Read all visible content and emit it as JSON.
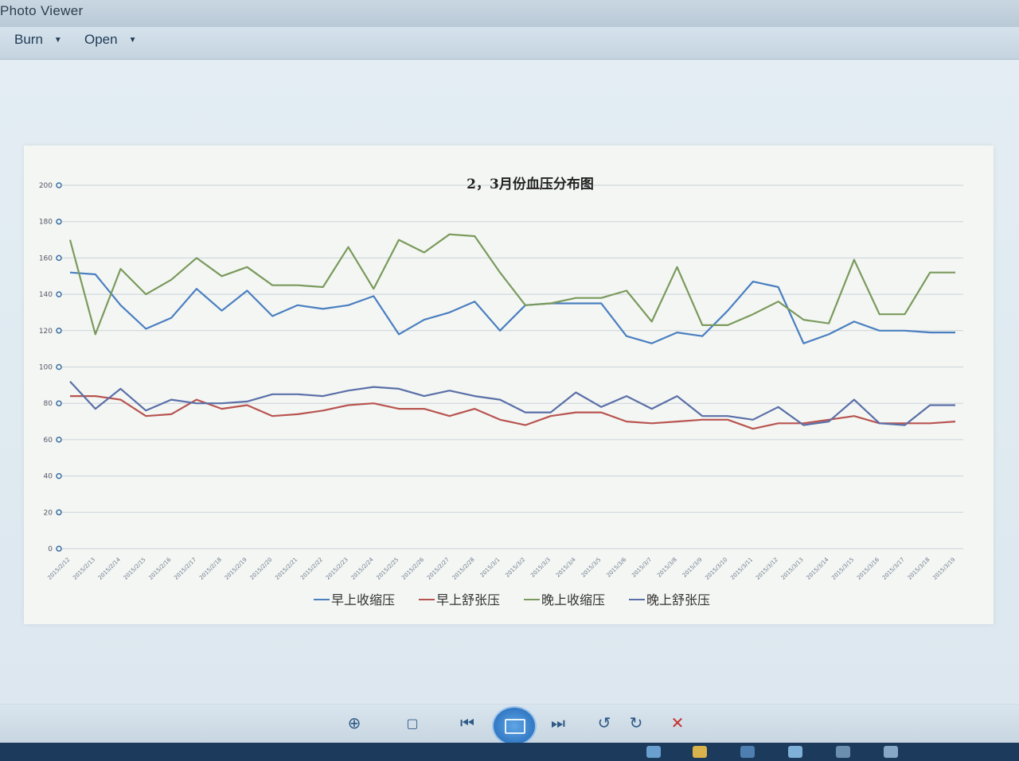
{
  "window": {
    "title": "Photo Viewer"
  },
  "menu": {
    "burn": "Burn",
    "open": "Open"
  },
  "chart_data": {
    "type": "line",
    "title": "2，3月份血压分布图",
    "xlabel": "",
    "ylabel": "",
    "ylim": [
      0,
      200
    ],
    "yticks": [
      0,
      20,
      40,
      60,
      80,
      100,
      120,
      140,
      160,
      180,
      200
    ],
    "grid": true,
    "legend_position": "bottom",
    "categories": [
      "2015/2/12",
      "2015/2/13",
      "2015/2/14",
      "2015/2/15",
      "2015/2/16",
      "2015/2/17",
      "2015/2/18",
      "2015/2/19",
      "2015/2/20",
      "2015/2/21",
      "2015/2/22",
      "2015/2/23",
      "2015/2/24",
      "2015/2/25",
      "2015/2/26",
      "2015/2/27",
      "2015/2/28",
      "2015/3/1",
      "2015/3/2",
      "2015/3/3",
      "2015/3/4",
      "2015/3/5",
      "2015/3/6",
      "2015/3/7",
      "2015/3/8",
      "2015/3/9",
      "2015/3/10",
      "2015/3/11",
      "2015/3/12",
      "2015/3/13",
      "2015/3/14",
      "2015/3/15",
      "2015/3/16",
      "2015/3/17",
      "2015/3/18",
      "2015/3/19"
    ],
    "series": [
      {
        "name": "早上收缩压",
        "color": "#4a7fc0",
        "values": [
          152,
          151,
          134,
          121,
          127,
          143,
          131,
          142,
          128,
          134,
          132,
          134,
          139,
          118,
          126,
          130,
          136,
          120,
          134,
          135,
          135,
          135,
          117,
          113,
          119,
          117,
          131,
          147,
          144,
          113,
          118,
          125,
          120,
          120,
          119,
          119
        ]
      },
      {
        "name": "早上舒张压",
        "color": "#b85450",
        "values": [
          84,
          84,
          82,
          73,
          74,
          82,
          77,
          79,
          73,
          74,
          76,
          79,
          80,
          77,
          77,
          73,
          77,
          71,
          68,
          73,
          75,
          75,
          70,
          69,
          70,
          71,
          71,
          66,
          69,
          69,
          71,
          73,
          69,
          69,
          69,
          70
        ]
      },
      {
        "name": "晚上收缩压",
        "color": "#7a9a5c",
        "values": [
          170,
          118,
          154,
          140,
          148,
          160,
          150,
          155,
          145,
          145,
          144,
          166,
          143,
          170,
          163,
          173,
          172,
          152,
          134,
          135,
          138,
          138,
          142,
          125,
          155,
          123,
          123,
          129,
          136,
          126,
          124,
          159,
          129,
          129,
          152,
          152
        ]
      },
      {
        "name": "晚上舒张压",
        "color": "#5a6fa8",
        "values": [
          92,
          77,
          88,
          76,
          82,
          80,
          80,
          81,
          85,
          85,
          84,
          87,
          89,
          88,
          84,
          87,
          84,
          82,
          75,
          75,
          86,
          78,
          84,
          77,
          84,
          73,
          73,
          71,
          78,
          68,
          70,
          82,
          69,
          68,
          79,
          79
        ]
      }
    ]
  },
  "toolbar": {
    "zoom_icon": "zoom-icon",
    "fit_icon": "actual-size-icon",
    "prev_icon": "previous-icon",
    "slideshow_icon": "slideshow-icon",
    "next_icon": "next-icon",
    "rotate_ccw_icon": "rotate-counterclockwise-icon",
    "rotate_cw_icon": "rotate-clockwise-icon",
    "delete_icon": "delete-icon"
  }
}
